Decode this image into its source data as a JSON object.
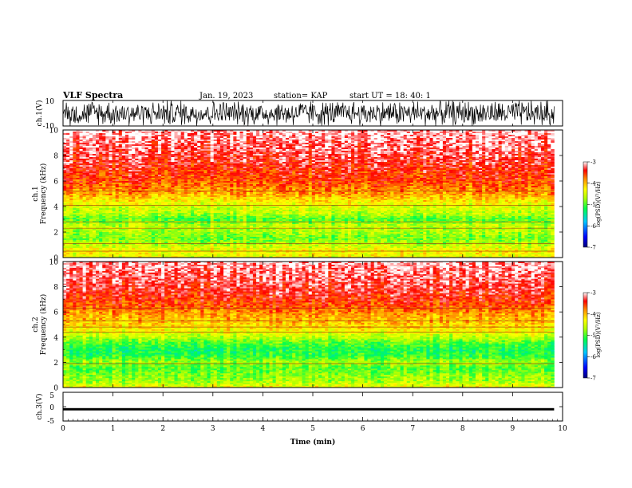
{
  "header": {
    "title": "VLF Spectra",
    "date": "Jan. 19, 2023",
    "station": "station= KAP",
    "start": "start  UT  =   18: 40: 1"
  },
  "colors": {
    "scale": [
      "#00007a",
      "#0000ff",
      "#00c8ff",
      "#00ff4c",
      "#b4ff00",
      "#ffff00",
      "#ff8c00",
      "#ff0000",
      "#ffffff"
    ],
    "waveform": "#000000"
  },
  "chart_data": [
    {
      "type": "line",
      "panel": "ch1-waveform",
      "ylabel": "ch.1(V)",
      "ylim": [
        -10,
        10
      ],
      "yticks": [
        {
          "value": 10,
          "label": "10"
        },
        {
          "value": -10,
          "label": "-10"
        }
      ],
      "xlim": [
        0,
        9.83
      ],
      "description_series": [
        {
          "name": "ch.1",
          "amplitude_range": [
            -10,
            10
          ],
          "kind": "dense noise"
        }
      ]
    },
    {
      "type": "heatmap",
      "panel": "ch1-spectrogram",
      "ylabel_line1": "ch.1",
      "ylabel_line2": "Frequency (kHz)",
      "ylim": [
        0,
        10
      ],
      "yticks": [
        "0",
        "2",
        "4",
        "6",
        "8",
        "10"
      ],
      "xlim": [
        0,
        9.83
      ],
      "z_label": "log(PSD)(V²/Hz)",
      "z_range": [
        -7,
        -3
      ],
      "z_ticks": [
        "-3",
        "-4",
        "-5",
        "-6",
        "-7"
      ],
      "profile": [
        {
          "f": 0.0,
          "z": -4.4
        },
        {
          "f": 0.5,
          "z": -4.3
        },
        {
          "f": 1.0,
          "z": -4.6
        },
        {
          "f": 1.5,
          "z": -4.9
        },
        {
          "f": 2.0,
          "z": -4.7
        },
        {
          "f": 2.5,
          "z": -4.6
        },
        {
          "f": 3.0,
          "z": -5.0
        },
        {
          "f": 3.5,
          "z": -4.6
        },
        {
          "f": 4.0,
          "z": -4.5
        },
        {
          "f": 4.5,
          "z": -4.2
        },
        {
          "f": 5.0,
          "z": -3.9
        },
        {
          "f": 6.0,
          "z": -3.6
        },
        {
          "f": 8.0,
          "z": -3.3
        },
        {
          "f": 10.0,
          "z": -3.1
        }
      ],
      "lines_khz": [
        0.5,
        1.1,
        2.3,
        2.8,
        4.1,
        5.2
      ]
    },
    {
      "type": "heatmap",
      "panel": "ch2-spectrogram",
      "ylabel_line1": "ch.2",
      "ylabel_line2": "Frequency (kHz)",
      "ylim": [
        0,
        10
      ],
      "yticks": [
        "0",
        "2",
        "4",
        "6",
        "8",
        "10"
      ],
      "xlim": [
        0,
        9.83
      ],
      "z_label": "log(PSD)(V²/Hz)",
      "z_range": [
        -7,
        -3
      ],
      "z_ticks": [
        "-3",
        "-4",
        "-5",
        "-6",
        "-7"
      ],
      "profile": [
        {
          "f": 0.0,
          "z": -4.3
        },
        {
          "f": 0.5,
          "z": -4.7
        },
        {
          "f": 1.0,
          "z": -4.8
        },
        {
          "f": 1.5,
          "z": -5.0
        },
        {
          "f": 2.0,
          "z": -4.7
        },
        {
          "f": 2.5,
          "z": -5.1
        },
        {
          "f": 3.0,
          "z": -5.2
        },
        {
          "f": 3.5,
          "z": -5.0
        },
        {
          "f": 4.0,
          "z": -4.6
        },
        {
          "f": 4.5,
          "z": -4.3
        },
        {
          "f": 5.0,
          "z": -4.1
        },
        {
          "f": 5.8,
          "z": -3.9
        },
        {
          "f": 6.5,
          "z": -3.6
        },
        {
          "f": 8.0,
          "z": -3.3
        },
        {
          "f": 10.0,
          "z": -3.1
        }
      ],
      "lines_khz": [
        1.9,
        4.4,
        4.8,
        5.3,
        6.3
      ]
    },
    {
      "type": "line",
      "panel": "ch3-waveform",
      "ylabel": "ch.3(V)",
      "ylim": [
        -5,
        5
      ],
      "yticks": [
        {
          "value": 5,
          "label": "5"
        },
        {
          "value": 0,
          "label": "0"
        },
        {
          "value": -5,
          "label": "-5"
        }
      ],
      "xlabel": "Time (min)",
      "xlim": [
        0,
        10
      ],
      "xticks": [
        "0",
        "1",
        "2",
        "3",
        "4",
        "5",
        "6",
        "7",
        "8",
        "9",
        "10"
      ],
      "description_series": [
        {
          "name": "ch.3",
          "amplitude_range": [
            -1.3,
            -0.5
          ],
          "kind": "narrow band"
        }
      ]
    }
  ]
}
